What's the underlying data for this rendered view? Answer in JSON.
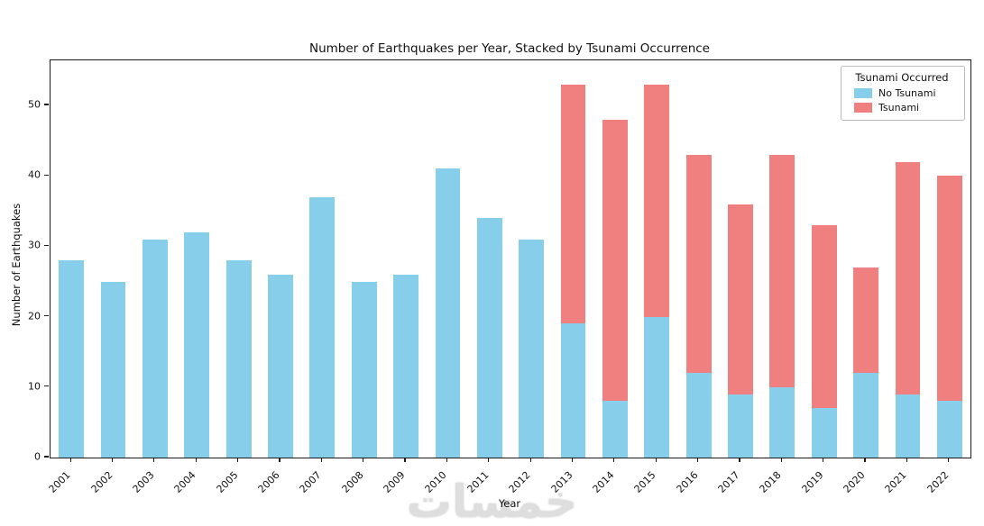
{
  "watermark": "خمسات",
  "chart_data": {
    "type": "bar",
    "stacked": true,
    "title": "Number of Earthquakes per Year, Stacked by Tsunami Occurrence",
    "xlabel": "Year",
    "ylabel": "Number of Earthquakes",
    "categories": [
      "2001",
      "2002",
      "2003",
      "2004",
      "2005",
      "2006",
      "2007",
      "2008",
      "2009",
      "2010",
      "2011",
      "2012",
      "2013",
      "2014",
      "2015",
      "2016",
      "2017",
      "2018",
      "2019",
      "2020",
      "2021",
      "2022"
    ],
    "series": [
      {
        "name": "No Tsunami",
        "color": "#87CEEB",
        "values": [
          28,
          25,
          31,
          32,
          28,
          26,
          37,
          25,
          26,
          41,
          34,
          31,
          19,
          8,
          20,
          12,
          9,
          10,
          7,
          12,
          9,
          8
        ]
      },
      {
        "name": "Tsunami",
        "color": "#F08080",
        "values": [
          0,
          0,
          0,
          0,
          0,
          0,
          0,
          0,
          0,
          0,
          0,
          0,
          34,
          40,
          33,
          31,
          27,
          33,
          26,
          15,
          33,
          32
        ]
      }
    ],
    "legend": {
      "title": "Tsunami Occurred",
      "position": "upper right"
    },
    "ylim": [
      0,
      56.4
    ],
    "yticks": [
      0,
      10,
      20,
      30,
      40,
      50
    ],
    "grid": false,
    "bar_width_fraction": 0.6
  }
}
